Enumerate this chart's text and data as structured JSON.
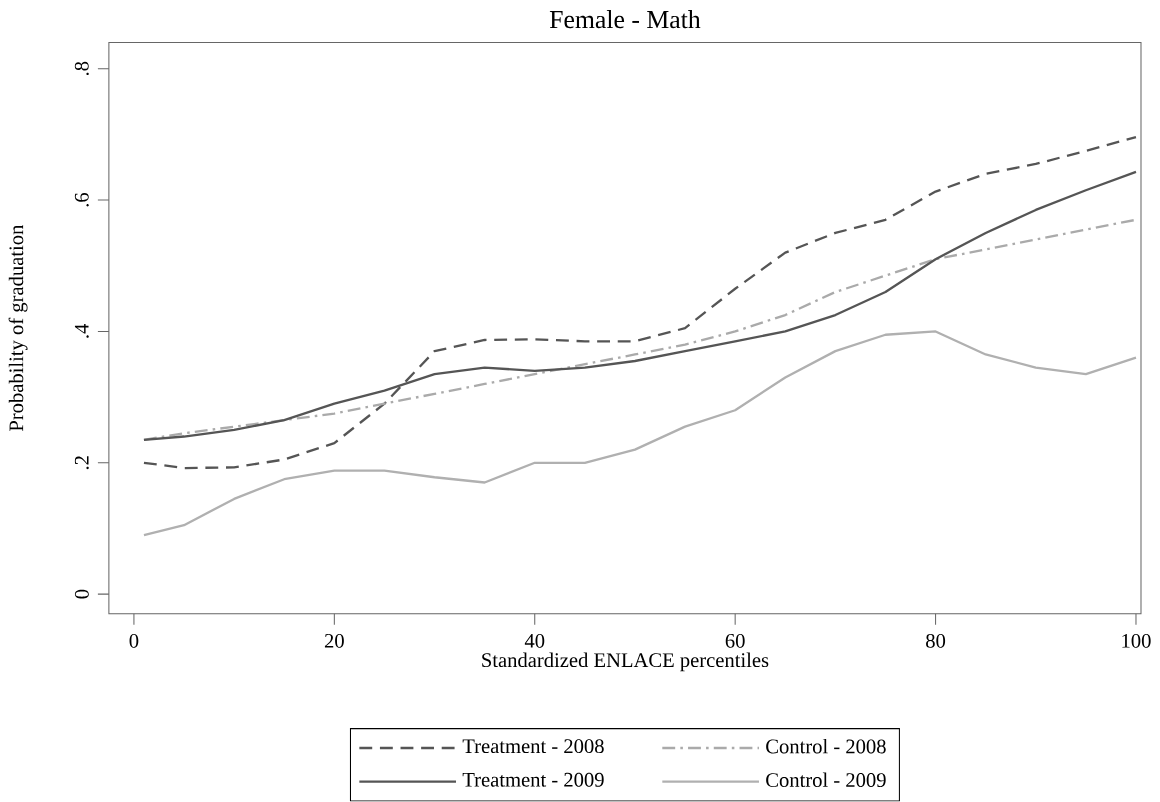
{
  "chart_data": {
    "type": "line",
    "title": "Female - Math",
    "xlabel": "Standardized ENLACE percentiles",
    "ylabel": "Probability of  graduation",
    "x": [
      1,
      5,
      10,
      15,
      20,
      25,
      30,
      35,
      40,
      45,
      50,
      55,
      60,
      65,
      70,
      75,
      80,
      85,
      90,
      95,
      100
    ],
    "series": [
      {
        "name": "Treatment - 2008",
        "color": "#555555",
        "line_style": "dashed",
        "values": [
          0.2,
          0.192,
          0.193,
          0.205,
          0.23,
          0.29,
          0.37,
          0.387,
          0.388,
          0.385,
          0.385,
          0.405,
          0.465,
          0.52,
          0.55,
          0.57,
          0.613,
          0.64,
          0.655,
          0.675,
          0.696
        ]
      },
      {
        "name": "Control - 2008",
        "color": "#aaaaaa",
        "line_style": "dashdot",
        "values": [
          0.235,
          0.245,
          0.255,
          0.265,
          0.275,
          0.29,
          0.305,
          0.32,
          0.335,
          0.35,
          0.365,
          0.38,
          0.4,
          0.425,
          0.46,
          0.485,
          0.51,
          0.525,
          0.54,
          0.555,
          0.57
        ]
      },
      {
        "name": "Treatment - 2009",
        "color": "#555555",
        "line_style": "solid",
        "values": [
          0.235,
          0.24,
          0.25,
          0.265,
          0.29,
          0.31,
          0.335,
          0.345,
          0.34,
          0.345,
          0.355,
          0.37,
          0.385,
          0.4,
          0.425,
          0.46,
          0.51,
          0.55,
          0.585,
          0.615,
          0.643
        ]
      },
      {
        "name": "Control - 2009",
        "color": "#b0b0b0",
        "line_style": "solid",
        "values": [
          0.09,
          0.105,
          0.145,
          0.175,
          0.188,
          0.188,
          0.178,
          0.17,
          0.2,
          0.2,
          0.22,
          0.255,
          0.28,
          0.33,
          0.37,
          0.395,
          0.4,
          0.365,
          0.345,
          0.335,
          0.36
        ]
      }
    ],
    "xlim": [
      -2.5,
      100.5
    ],
    "ylim": [
      -0.03,
      0.84
    ],
    "xticks": [
      0,
      20,
      40,
      60,
      80,
      100
    ],
    "yticks": [
      {
        "value": 0,
        "label": "0"
      },
      {
        "value": 0.2,
        "label": ".2"
      },
      {
        "value": 0.4,
        "label": ".4"
      },
      {
        "value": 0.6,
        "label": ".6"
      },
      {
        "value": 0.8,
        "label": ".8"
      }
    ],
    "grid": false,
    "legend": "bottom"
  }
}
